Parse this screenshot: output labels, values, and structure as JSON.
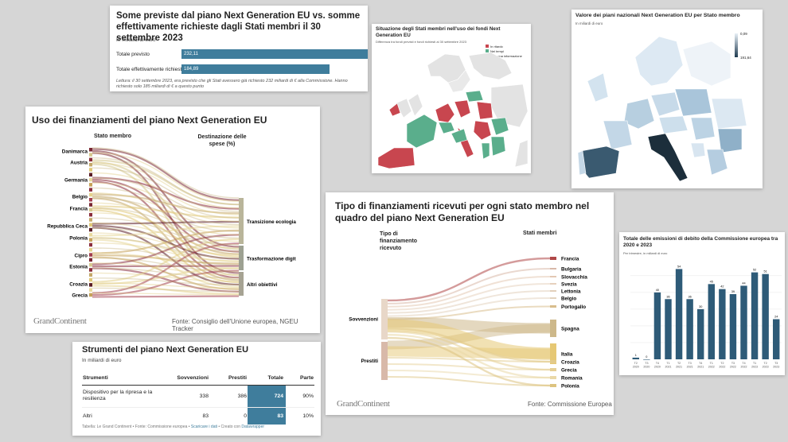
{
  "colors": {
    "blue": "#3f7d9c",
    "red": "#c8464f",
    "green": "#5aae8c",
    "darkblue": "#2e5b78",
    "bg": "#d6d6d6"
  },
  "card1": {
    "title": "Some previste dal piano Next Generation EU vs. somme effettivamente richieste dagli Stati membri il 30 settembre 2023",
    "subtitle": "In miliardi di euro",
    "bars": [
      {
        "label": "Totale previsto",
        "value": 232.11,
        "text": "232,11"
      },
      {
        "label": "Totale effettivamente richiesto",
        "value": 184.89,
        "text": "184,89"
      }
    ],
    "note": "Lettura: il 30 settembre 2023, era previsto che gli Stati avessero già richiesto 232 miliardi di € alla Commissione. Hanno richiesto solo 185 miliardi di € a questo punto"
  },
  "card2": {
    "title": "Situazione degli Stati membri nell'uso dei fondi Next Generation EU",
    "subtitle": "Differenza tra fondi previsti e fondi richiesti al 30 settembre 2023",
    "legend": [
      "In ritardo",
      "Nei tempi",
      "Nessuna informazione"
    ]
  },
  "card3": {
    "title": "Valore dei piani nazionali Next Generation EU per Stato membro",
    "subtitle": "In miliardi di euro",
    "legend_min": "0,09",
    "legend_max": "191,64"
  },
  "card4": {
    "title": "Uso dei finanziamenti del piano Next Generation EU",
    "left_header": "Stato membro",
    "right_header": "Destinazione delle spese (%)",
    "countries": [
      "Danimarca",
      "Austria",
      "Germania",
      "Belgio",
      "Francia",
      "Repubblica Ceca",
      "Polonia",
      "Cipro",
      "Estonia",
      "Croazia",
      "Grecia"
    ],
    "destinations": [
      "Transizione ecologia",
      "Trasformazione digit",
      "Altri obiettivi"
    ],
    "logo": "GrandContinent",
    "source": "Fonte: Consiglio dell'Unione europea, NGEU Tracker"
  },
  "card5": {
    "title": "Strumenti del piano Next Generation EU",
    "subtitle": "In miliardi di euro",
    "headers": [
      "Strumenti",
      "Sovvenzioni",
      "Prestiti",
      "Totale",
      "Parte"
    ],
    "rows": [
      {
        "name": "Dispositivo per la ripresa e la resilienza",
        "sov": "338",
        "pre": "386",
        "tot": "724",
        "parte": "90%"
      },
      {
        "name": "Altri",
        "sov": "83",
        "pre": "0",
        "tot": "83",
        "parte": "10%"
      }
    ],
    "footer": "Tabella: Le Grand Continent • Fonte: Commissione europea •",
    "footer_link": "Scaricare i dati",
    "footer_end": "• Creato con",
    "footer_tool": "Datawrapper"
  },
  "card6": {
    "title": "Tipo di finanziamenti ricevuti per ogni stato membro nel quadro del piano Next Generation EU",
    "left_header": "Tipo di finanziamento ricevuto",
    "right_header": "Stati membri",
    "types": [
      "Sovvenzioni",
      "Prestiti"
    ],
    "states": [
      "Francia",
      "Bulgaria",
      "Slovacchia",
      "Svezia",
      "Lettonia",
      "Belgio",
      "Portogallo",
      "Spagna",
      "Italia",
      "Croazia",
      "Grecia",
      "Romania",
      "Polonia"
    ],
    "logo": "GrandContinent",
    "source": "Fonte: Commissione Europea"
  },
  "chart_data": [
    {
      "type": "bar",
      "title": "Some previste dal piano Next Generation EU vs. somme effettivamente richieste dagli Stati membri il 30 settembre 2023",
      "categories": [
        "Totale previsto",
        "Totale effettivamente richiesto"
      ],
      "values": [
        232.11,
        184.89
      ],
      "ylabel": "In miliardi di euro"
    },
    {
      "type": "bar",
      "title": "Totale delle emissioni di debito della Commissione europea tra 2020 e 2023",
      "subtitle": "Per trimestre, in miliardi di euro",
      "categories": [
        "T2 2020",
        "T3 2020",
        "T4 2020",
        "T1 2021",
        "T2 2021",
        "T3 2021",
        "T4 2021",
        "T1 2022",
        "T2 2022",
        "T3 2022",
        "T4 2022",
        "T1 2023",
        "T2 2023",
        "T3 2023"
      ],
      "values": [
        1,
        0,
        40,
        36,
        54,
        36,
        30,
        45,
        42,
        39,
        44,
        52,
        51,
        24
      ],
      "value_labels": [
        "1",
        "0",
        "40",
        "36",
        "54",
        "36",
        "30",
        "45",
        "42",
        "39",
        "44",
        "52",
        "51",
        "24"
      ],
      "tick_labels": [
        [
          "T2",
          "2020"
        ],
        [
          "T3",
          "2020"
        ],
        [
          "T4",
          "2020"
        ],
        [
          "T1",
          "2021"
        ],
        [
          "T2",
          "2021"
        ],
        [
          "T3",
          "2021"
        ],
        [
          "T4",
          "2021"
        ],
        [
          "T1",
          "2022"
        ],
        [
          "T2",
          "2022"
        ],
        [
          "T3",
          "2022"
        ],
        [
          "T4",
          "2022"
        ],
        [
          "T1",
          "2023"
        ],
        [
          "T2",
          "2023"
        ],
        [
          "T3",
          "2023"
        ]
      ],
      "ylim": [
        0,
        58
      ],
      "grid": true
    }
  ]
}
